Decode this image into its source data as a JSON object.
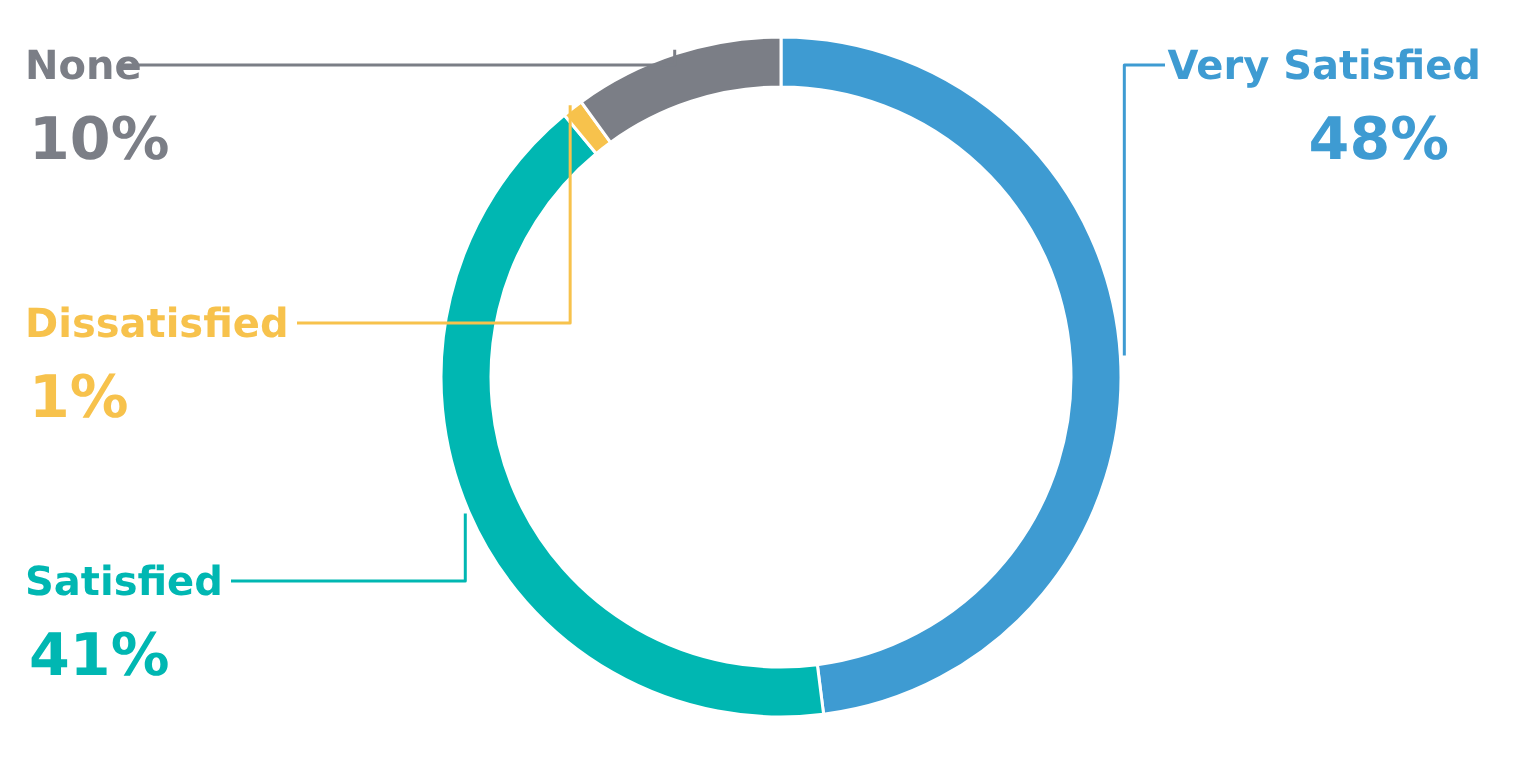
{
  "chart_data": {
    "type": "donut",
    "categories": [
      "Very Satisfied",
      "Satisfied",
      "Dissatisfied",
      "None"
    ],
    "values": [
      48,
      41,
      1,
      10
    ],
    "colors": [
      "#3e9bd2",
      "#00b7b2",
      "#f7c24c",
      "#7b7e86"
    ],
    "value_labels": [
      "48%",
      "41%",
      "1%",
      "10%"
    ]
  }
}
